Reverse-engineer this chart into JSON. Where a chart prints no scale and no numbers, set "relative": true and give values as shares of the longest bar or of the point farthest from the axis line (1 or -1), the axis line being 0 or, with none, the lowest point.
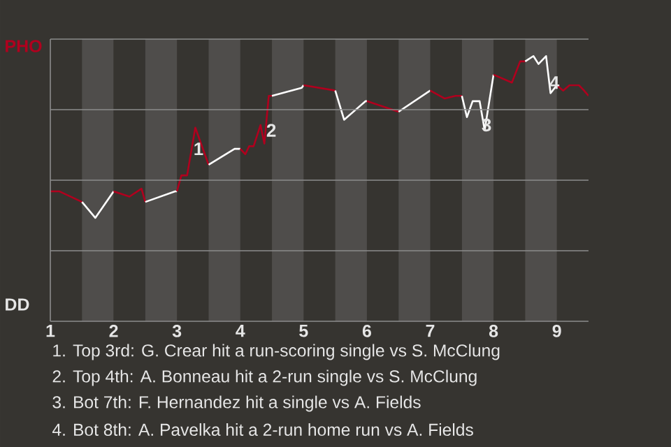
{
  "chart_data": {
    "type": "line",
    "relative": true,
    "xlim": [
      1,
      9.5
    ],
    "xticks": [
      {
        "value": 1,
        "label": "1"
      },
      {
        "value": 2,
        "label": "2"
      },
      {
        "value": 3,
        "label": "3"
      },
      {
        "value": 4,
        "label": "4"
      },
      {
        "value": 5,
        "label": "5"
      },
      {
        "value": 6,
        "label": "6"
      },
      {
        "value": 7,
        "label": "7"
      },
      {
        "value": 8,
        "label": "8"
      },
      {
        "value": 9,
        "label": "9"
      }
    ],
    "grid": "y",
    "marker": "none",
    "line_style": "solid",
    "series": [
      {
        "color": "#b0001e",
        "x": [
          1.0,
          1.14,
          1.5
        ],
        "values": [
          0.49,
          0.49,
          0.45
        ]
      },
      {
        "color": "#ffffff",
        "x": [
          1.5,
          1.71,
          2.0
        ],
        "values": [
          0.45,
          0.39,
          0.49
        ]
      },
      {
        "color": "#b0001e",
        "x": [
          2.0,
          2.25,
          2.44,
          2.5
        ],
        "values": [
          0.49,
          0.47,
          0.5,
          0.45
        ]
      },
      {
        "color": "#ffffff",
        "x": [
          2.5,
          2.97,
          3.0
        ],
        "values": [
          0.45,
          0.49,
          0.49
        ]
      },
      {
        "color": "#b0001e",
        "x": [
          3.0,
          3.07,
          3.16,
          3.29,
          3.5
        ],
        "values": [
          0.49,
          0.55,
          0.55,
          0.73,
          0.59
        ]
      },
      {
        "color": "#ffffff",
        "x": [
          3.5,
          3.91,
          4.0
        ],
        "values": [
          0.59,
          0.65,
          0.65
        ]
      },
      {
        "color": "#b0001e",
        "x": [
          4.0,
          4.08,
          4.14,
          4.21,
          4.32,
          4.38,
          4.45,
          4.5
        ],
        "values": [
          0.65,
          0.63,
          0.66,
          0.66,
          0.74,
          0.67,
          0.85,
          0.85
        ]
      },
      {
        "color": "#ffffff",
        "x": [
          4.5,
          4.97,
          5.0
        ],
        "values": [
          0.85,
          0.88,
          0.89
        ]
      },
      {
        "color": "#b0001e",
        "x": [
          5.0,
          5.5
        ],
        "values": [
          0.89,
          0.87
        ]
      },
      {
        "color": "#ffffff",
        "x": [
          5.5,
          5.64,
          5.98,
          6.0
        ],
        "values": [
          0.87,
          0.76,
          0.83,
          0.83
        ]
      },
      {
        "color": "#b0001e",
        "x": [
          6.0,
          6.5
        ],
        "values": [
          0.83,
          0.79
        ]
      },
      {
        "color": "#ffffff",
        "x": [
          6.5,
          7.0
        ],
        "values": [
          0.79,
          0.87
        ]
      },
      {
        "color": "#b0001e",
        "x": [
          7.0,
          7.23,
          7.4,
          7.5
        ],
        "values": [
          0.87,
          0.84,
          0.85,
          0.85
        ]
      },
      {
        "color": "#ffffff",
        "x": [
          7.5,
          7.58,
          7.67,
          7.78,
          7.86,
          8.0
        ],
        "values": [
          0.85,
          0.77,
          0.83,
          0.83,
          0.72,
          0.93
        ]
      },
      {
        "color": "#b0001e",
        "x": [
          8.0,
          8.29,
          8.42,
          8.5
        ],
        "values": [
          0.93,
          0.9,
          0.98,
          0.98
        ]
      },
      {
        "color": "#ffffff",
        "x": [
          8.5,
          8.63,
          8.71,
          8.83,
          8.9,
          9.0
        ],
        "values": [
          0.98,
          1.0,
          0.97,
          1.0,
          0.86,
          0.89
        ]
      },
      {
        "color": "#b0001e",
        "x": [
          9.0,
          9.1,
          9.2,
          9.35,
          9.43,
          9.5
        ],
        "values": [
          0.89,
          0.87,
          0.89,
          0.89,
          0.87,
          0.85
        ]
      }
    ],
    "bands": [
      {
        "axis": "x",
        "from": 1.5,
        "to": 2,
        "color": "#4f4d4b"
      },
      {
        "axis": "x",
        "from": 2.5,
        "to": 3,
        "color": "#4f4d4b"
      },
      {
        "axis": "x",
        "from": 3.5,
        "to": 4,
        "color": "#4f4d4b"
      },
      {
        "axis": "x",
        "from": 4.5,
        "to": 5,
        "color": "#4f4d4b"
      },
      {
        "axis": "x",
        "from": 5.5,
        "to": 6,
        "color": "#4f4d4b"
      },
      {
        "axis": "x",
        "from": 6.5,
        "to": 7,
        "color": "#4f4d4b"
      },
      {
        "axis": "x",
        "from": 7.5,
        "to": 8,
        "color": "#4f4d4b"
      },
      {
        "axis": "x",
        "from": 8.5,
        "to": 9,
        "color": "#4f4d4b"
      }
    ],
    "annotations": [
      "PHO",
      "DD",
      {
        "text": "1",
        "x": 3.34,
        "y": 0.65
      },
      {
        "text": "2",
        "x": 4.49,
        "y": 0.72
      },
      {
        "text": "3",
        "x": 7.89,
        "y": 0.74
      },
      {
        "text": "4",
        "x": 8.96,
        "y": 0.9
      },
      "1. Top 3rd: G. Crear hit a run-scoring single vs S. McClung",
      "2. Top 4th: A. Bonneau hit a 2-run single vs S. McClung",
      "3. Bot 7th: F. Hernandez hit a single vs A. Fields",
      "4. Bot 8th: A. Pavelka hit a 2-run home run vs A. Fields"
    ]
  }
}
